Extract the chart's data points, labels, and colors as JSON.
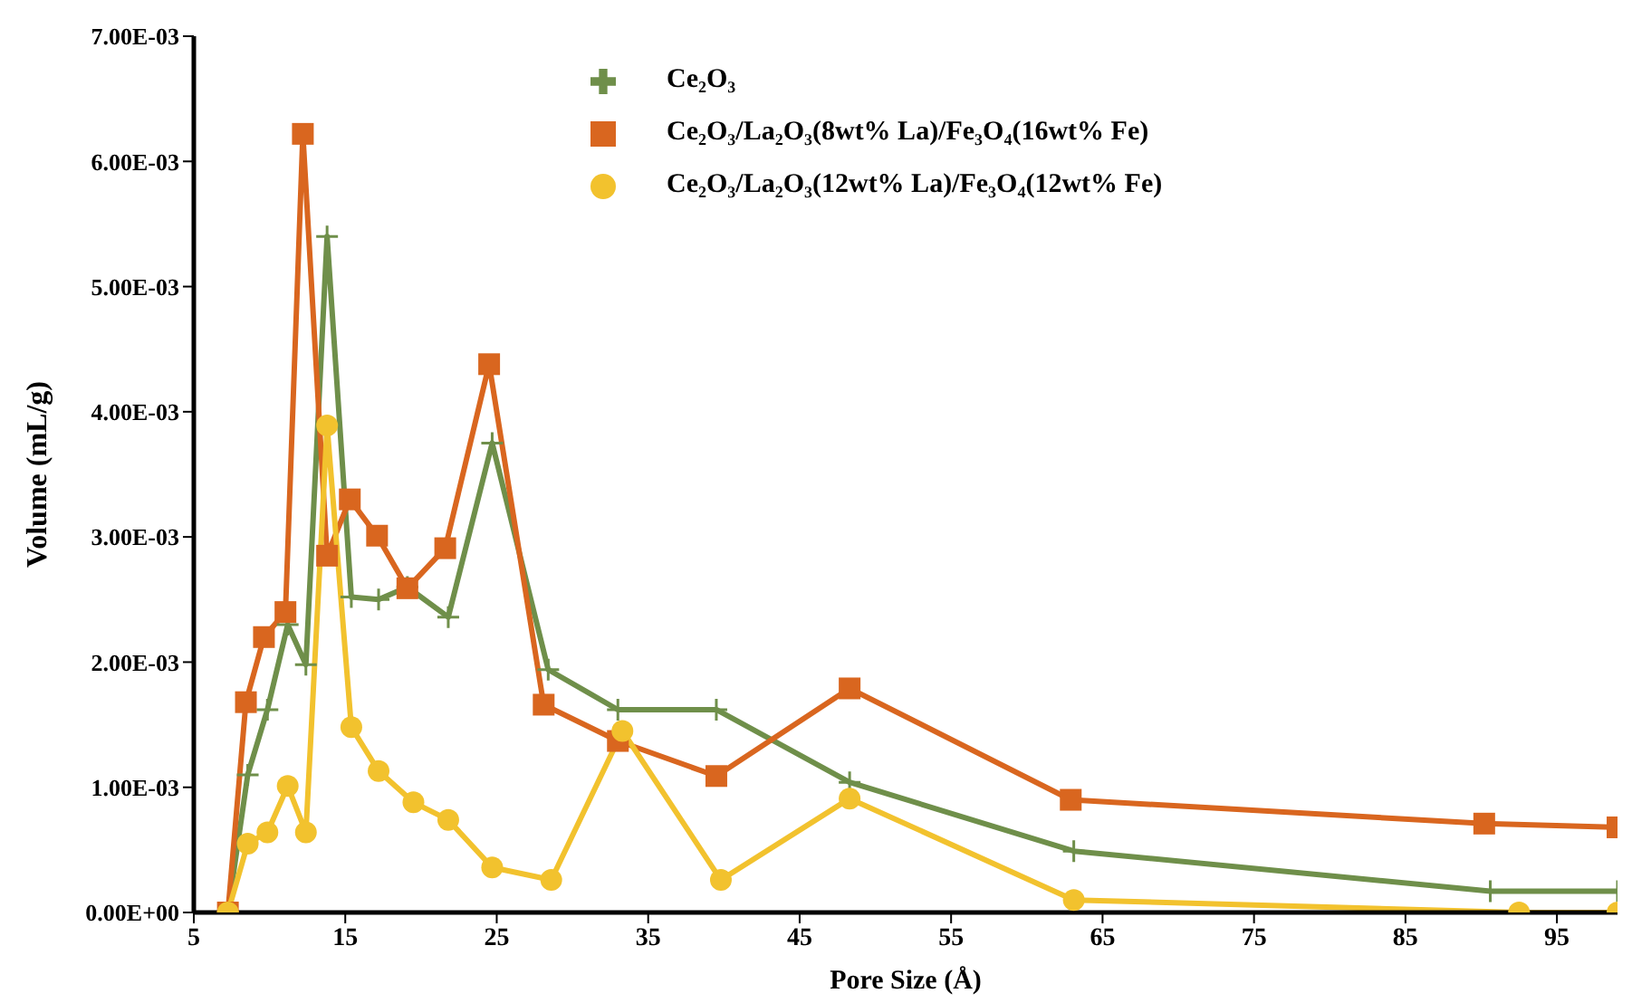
{
  "chart_data": {
    "type": "line",
    "xlabel": "Pore Size (Å)",
    "ylabel": "Volume (mL/g)",
    "xlim": [
      5,
      99
    ],
    "xticks": [
      5,
      15,
      25,
      35,
      45,
      55,
      65,
      75,
      85,
      95
    ],
    "ylim": [
      0,
      0.007
    ],
    "yticks": [
      {
        "value": 0,
        "label": "0.00E+00"
      },
      {
        "value": 0.001,
        "label": "1.00E-03"
      },
      {
        "value": 0.002,
        "label": "2.00E-03"
      },
      {
        "value": 0.003,
        "label": "3.00E-03"
      },
      {
        "value": 0.004,
        "label": "4.00E-03"
      },
      {
        "value": 0.005,
        "label": "5.00E-03"
      },
      {
        "value": 0.006,
        "label": "6.00E-03"
      },
      {
        "value": 0.007,
        "label": "7.00E-03"
      }
    ],
    "grid": false,
    "legend": "top",
    "line_style": "solid",
    "series": [
      {
        "name": "Ce₂O₃",
        "color": "#6f8f4a",
        "marker": "cross",
        "x": [
          7.25,
          8.56,
          9.86,
          11.2,
          12.4,
          13.8,
          15.4,
          17.2,
          19.1,
          21.8,
          24.7,
          28.4,
          33,
          39.5,
          48.3,
          63.1,
          90.6,
          99
        ],
        "values": [
          0,
          0.0011,
          0.00162,
          0.0023,
          0.00198,
          0.0054,
          0.00252,
          0.0025,
          0.0026,
          0.00236,
          0.00375,
          0.00194,
          0.00162,
          0.00162,
          0.00104,
          0.00049,
          0.00017,
          0.00017
        ]
      },
      {
        "name": "Ce₂O₃/La₂O₃(8wt% La)/Fe₃O₄(16wt% Fe)",
        "color": "#d9661f",
        "marker": "square",
        "x": [
          7.25,
          8.44,
          9.63,
          11.05,
          12.2,
          13.8,
          15.3,
          17.1,
          19.1,
          21.6,
          24.5,
          28.1,
          33,
          39.5,
          48.3,
          62.9,
          90.2,
          99
        ],
        "values": [
          0,
          0.00168,
          0.0022,
          0.0024,
          0.00622,
          0.00285,
          0.0033,
          0.00301,
          0.00259,
          0.00291,
          0.00438,
          0.00166,
          0.00137,
          0.00109,
          0.00179,
          0.0009,
          0.00071,
          0.00068
        ]
      },
      {
        "name": "Ce₂O₃/La₂O₃(12wt% La)/Fe₃O₄(12wt% Fe)",
        "color": "#f2c22e",
        "marker": "circle",
        "x": [
          7.25,
          8.56,
          9.86,
          11.2,
          12.4,
          13.8,
          15.4,
          17.2,
          19.5,
          21.8,
          24.7,
          28.6,
          33.3,
          39.8,
          48.3,
          63.1,
          92.5,
          99
        ],
        "values": [
          0,
          0.00055,
          0.00064,
          0.00101,
          0.00064,
          0.00389,
          0.00148,
          0.00113,
          0.00088,
          0.00074,
          0.00036,
          0.00026,
          0.00145,
          0.00026,
          0.00091,
          0.0001,
          0,
          0
        ]
      }
    ]
  }
}
